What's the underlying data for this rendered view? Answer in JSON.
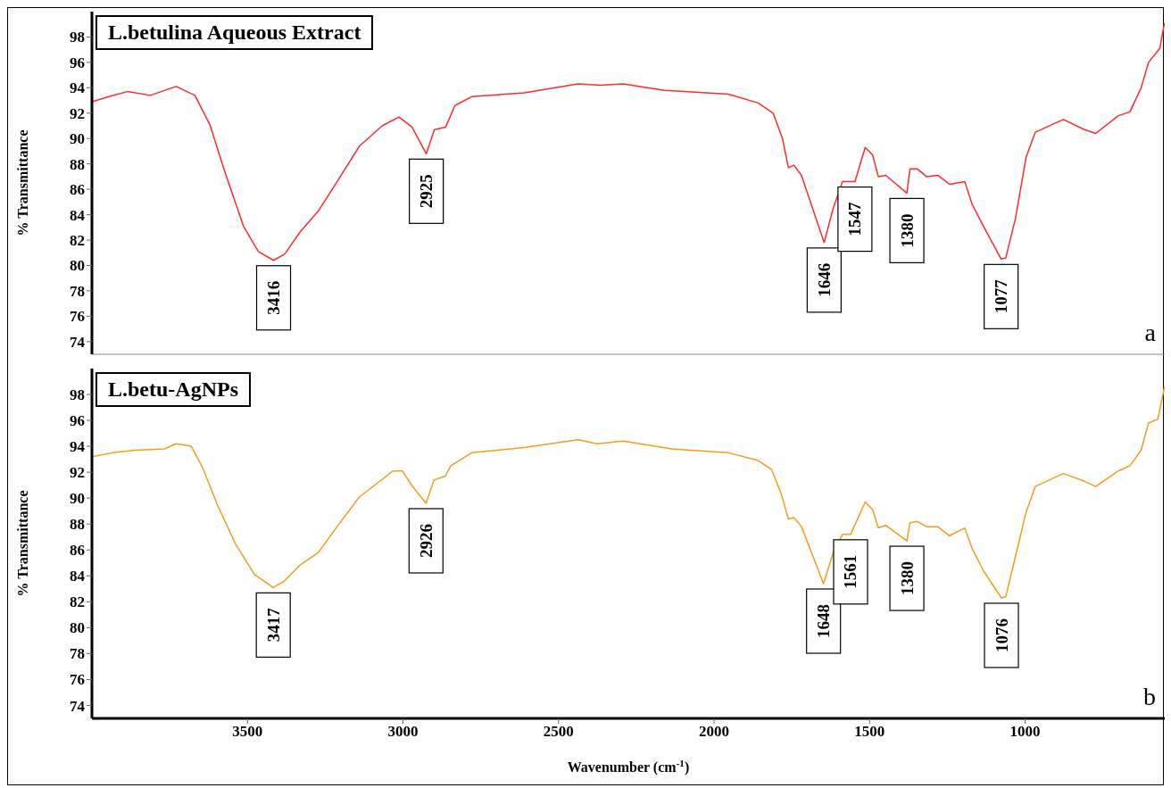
{
  "chart_data": [
    {
      "type": "line",
      "title": "L.betulina Aqueous Extract",
      "ylabel": "% Transmittance",
      "xlim": [
        4000,
        551
      ],
      "xticks": [
        3500,
        3000,
        2500,
        2000,
        1500,
        1000
      ],
      "ylim": [
        73,
        100
      ],
      "yticks": [
        74,
        76,
        78,
        80,
        82,
        84,
        86,
        88,
        90,
        92,
        94,
        96,
        98
      ],
      "tick_labels": "y",
      "series": [
        {
          "color": "#ff2a2a",
          "x": [
            4000,
            3946,
            3886,
            3813,
            3729,
            3669,
            3621,
            3573,
            3513,
            3465,
            3416,
            3380,
            3332,
            3272,
            3212,
            3140,
            3067,
            3013,
            2971,
            2925,
            2899,
            2863,
            2833,
            2779,
            2610,
            2437,
            2365,
            2292,
            2160,
            1954,
            1858,
            1810,
            1780,
            1761,
            1743,
            1719,
            1646,
            1617,
            1587,
            1547,
            1514,
            1490,
            1472,
            1448,
            1380,
            1370,
            1346,
            1317,
            1281,
            1243,
            1194,
            1170,
            1134,
            1077,
            1062,
            1031,
            997,
            967,
            877,
            809,
            773,
            700,
            663,
            627,
            603,
            567,
            552
          ],
          "values": [
            92.9,
            93.3,
            93.7,
            93.4,
            94.1,
            93.4,
            91.1,
            87.4,
            83.1,
            81.1,
            80.4,
            80.9,
            82.6,
            84.3,
            86.6,
            89.4,
            91.0,
            91.7,
            90.9,
            88.8,
            90.7,
            90.9,
            92.6,
            93.3,
            93.6,
            94.3,
            94.2,
            94.3,
            93.8,
            93.5,
            92.8,
            92.0,
            90.0,
            87.7,
            87.9,
            87.1,
            81.8,
            84.5,
            86.6,
            86.6,
            89.3,
            88.7,
            87.0,
            87.1,
            85.7,
            87.6,
            87.6,
            87.0,
            87.1,
            86.4,
            86.6,
            84.8,
            83.1,
            80.5,
            80.6,
            83.7,
            88.5,
            90.5,
            91.5,
            90.7,
            90.4,
            91.8,
            92.1,
            94.0,
            96.0,
            97.1,
            99.1
          ]
        }
      ],
      "annotations": [
        {
          "text": "3416",
          "x": 3416,
          "y": 80.4
        },
        {
          "text": "2925",
          "x": 2925,
          "y": 88.8
        },
        {
          "text": "1646",
          "x": 1646,
          "y": 81.8
        },
        {
          "text": "1547",
          "x": 1547,
          "y": 86.6
        },
        {
          "text": "1380",
          "x": 1380,
          "y": 85.7
        },
        {
          "text": "1077",
          "x": 1077,
          "y": 80.5
        },
        "a"
      ]
    },
    {
      "type": "line",
      "title": "L.betu-AgNPs",
      "xlabel": "Wavenumber (cm$^{-1}$)",
      "ylabel": "% Transmittance",
      "xlim": [
        4000,
        551
      ],
      "xticks": [
        3500,
        3000,
        2500,
        2000,
        1500,
        1000
      ],
      "ylim": [
        73,
        100
      ],
      "yticks": [
        74,
        76,
        78,
        80,
        82,
        84,
        86,
        88,
        90,
        92,
        94,
        96,
        98
      ],
      "series": [
        {
          "color": "#f39c1e",
          "x": [
            4000,
            3934,
            3862,
            3766,
            3729,
            3681,
            3645,
            3597,
            3537,
            3477,
            3417,
            3381,
            3333,
            3272,
            3212,
            3140,
            3080,
            3032,
            3002,
            2972,
            2926,
            2900,
            2864,
            2846,
            2779,
            2611,
            2437,
            2377,
            2292,
            2136,
            1954,
            1858,
            1815,
            1785,
            1761,
            1743,
            1719,
            1648,
            1617,
            1587,
            1561,
            1514,
            1490,
            1472,
            1448,
            1380,
            1370,
            1346,
            1317,
            1281,
            1243,
            1194,
            1170,
            1134,
            1076,
            1062,
            1031,
            997,
            967,
            877,
            809,
            773,
            700,
            663,
            627,
            603,
            573,
            552
          ],
          "values": [
            93.2,
            93.5,
            93.7,
            93.8,
            94.2,
            94.0,
            92.4,
            89.5,
            86.4,
            84.1,
            83.1,
            83.6,
            84.8,
            85.8,
            87.8,
            90.1,
            91.2,
            92.1,
            92.1,
            91.0,
            89.6,
            91.4,
            91.7,
            92.5,
            93.5,
            93.9,
            94.5,
            94.2,
            94.4,
            93.8,
            93.5,
            92.9,
            92.2,
            90.4,
            88.4,
            88.5,
            87.8,
            83.4,
            85.8,
            87.2,
            87.2,
            89.7,
            89.1,
            87.7,
            87.9,
            86.7,
            88.1,
            88.2,
            87.8,
            87.8,
            87.1,
            87.7,
            86.1,
            84.4,
            82.3,
            82.4,
            85.5,
            88.9,
            90.9,
            91.9,
            91.3,
            90.9,
            92.1,
            92.5,
            93.7,
            95.8,
            96.1,
            98.6
          ]
        }
      ],
      "annotations": [
        {
          "text": "3417",
          "x": 3417,
          "y": 83.1
        },
        {
          "text": "2926",
          "x": 2926,
          "y": 89.6
        },
        {
          "text": "1648",
          "x": 1648,
          "y": 83.4
        },
        {
          "text": "1561",
          "x": 1561,
          "y": 87.2
        },
        {
          "text": "1380",
          "x": 1380,
          "y": 86.7
        },
        {
          "text": "1076",
          "x": 1076,
          "y": 82.3
        },
        "b"
      ]
    }
  ]
}
